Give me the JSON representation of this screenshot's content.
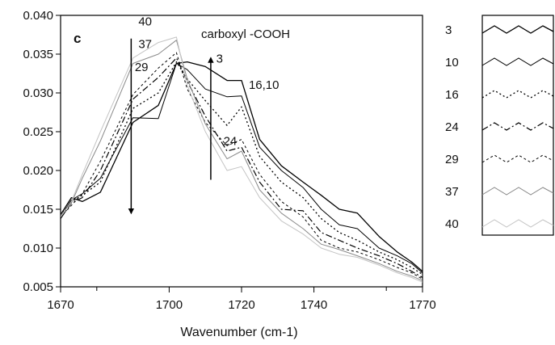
{
  "chart_data": {
    "type": "line",
    "panel_letter": "c",
    "title": "carboxyl -COOH",
    "xlabel": "Wavenumber (cm-1)",
    "ylabel": "",
    "xlim": [
      1670,
      1770
    ],
    "ylim": [
      0.005,
      0.04
    ],
    "xticks": [
      1670,
      1700,
      1720,
      1740,
      1770
    ],
    "xtick_labels": [
      "1670",
      "1700",
      "1720",
      "1740",
      "1770"
    ],
    "minor_xticks": [
      1680,
      1760
    ],
    "yticks": [
      0.005,
      0.01,
      0.015,
      0.02,
      0.025,
      0.03,
      0.035,
      0.04
    ],
    "ytick_labels": [
      "0.005",
      "0.010",
      "0.015",
      "0.020",
      "0.025",
      "0.030",
      "0.035",
      "0.040"
    ],
    "grid": false,
    "legend_position": "right",
    "x": [
      1670,
      1673,
      1676,
      1681,
      1690,
      1697,
      1702,
      1705,
      1710,
      1716,
      1720,
      1725,
      1731,
      1737,
      1742,
      1747,
      1752,
      1758,
      1763,
      1767,
      1770
    ],
    "series": [
      {
        "name": "3",
        "color": "#000000",
        "dash": "solid",
        "width": 1.3,
        "values": [
          0.0143,
          0.0165,
          0.016,
          0.0172,
          0.0262,
          0.0284,
          0.0338,
          0.034,
          0.0334,
          0.0316,
          0.0316,
          0.024,
          0.0206,
          0.0185,
          0.0168,
          0.015,
          0.0145,
          0.0115,
          0.0095,
          0.0082,
          0.007
        ]
      },
      {
        "name": "10",
        "color": "#000000",
        "dash": "solid",
        "width": 1.0,
        "values": [
          0.014,
          0.0162,
          0.017,
          0.019,
          0.0268,
          0.0267,
          0.0338,
          0.033,
          0.0305,
          0.0295,
          0.0296,
          0.023,
          0.02,
          0.0178,
          0.015,
          0.013,
          0.0125,
          0.01,
          0.009,
          0.008,
          0.0068
        ]
      },
      {
        "name": "16",
        "color": "#000000",
        "dash": "2 3",
        "width": 1.3,
        "values": [
          0.0142,
          0.016,
          0.0168,
          0.0185,
          0.028,
          0.03,
          0.034,
          0.0318,
          0.029,
          0.0258,
          0.0282,
          0.0218,
          0.0185,
          0.0165,
          0.0138,
          0.012,
          0.011,
          0.0095,
          0.0085,
          0.0075,
          0.0066
        ]
      },
      {
        "name": "24",
        "color": "#000000",
        "dash": "8 3 2 3",
        "width": 1.2,
        "values": [
          0.0138,
          0.0158,
          0.0165,
          0.02,
          0.0292,
          0.032,
          0.0345,
          0.0315,
          0.027,
          0.0225,
          0.023,
          0.0185,
          0.015,
          0.0148,
          0.012,
          0.011,
          0.01,
          0.009,
          0.008,
          0.007,
          0.0062
        ]
      },
      {
        "name": "29",
        "color": "#000000",
        "dash": "3 3",
        "width": 1.0,
        "values": [
          0.014,
          0.0155,
          0.017,
          0.0212,
          0.0298,
          0.0332,
          0.0352,
          0.0305,
          0.0262,
          0.0232,
          0.024,
          0.0195,
          0.016,
          0.014,
          0.011,
          0.01,
          0.0095,
          0.0085,
          0.0075,
          0.0068,
          0.006
        ]
      },
      {
        "name": "37",
        "color": "#8a8a8a",
        "dash": "solid",
        "width": 1.0,
        "values": [
          0.0142,
          0.0158,
          0.019,
          0.0238,
          0.0338,
          0.035,
          0.0368,
          0.0318,
          0.026,
          0.0215,
          0.0225,
          0.0175,
          0.0145,
          0.0125,
          0.0105,
          0.0098,
          0.009,
          0.008,
          0.007,
          0.0064,
          0.0058
        ]
      },
      {
        "name": "40",
        "color": "#c4c4c4",
        "dash": "solid",
        "width": 1.0,
        "values": [
          0.014,
          0.016,
          0.0195,
          0.025,
          0.0345,
          0.0365,
          0.0372,
          0.031,
          0.025,
          0.02,
          0.0205,
          0.0165,
          0.0135,
          0.0118,
          0.01,
          0.0092,
          0.0088,
          0.0078,
          0.0068,
          0.0062,
          0.0056
        ]
      }
    ],
    "annotations": [
      {
        "text": "40",
        "x": 1691.5,
        "y": 0.0387
      },
      {
        "text": "37",
        "x": 1691.5,
        "y": 0.0358
      },
      {
        "text": "29",
        "x": 1690.5,
        "y": 0.0328
      },
      {
        "text": "3",
        "x": 1713,
        "y": 0.0339
      },
      {
        "text": "16,10",
        "x": 1722,
        "y": 0.0305
      },
      {
        "text": "24",
        "x": 1715,
        "y": 0.0233
      }
    ],
    "arrows": [
      {
        "direction": "down",
        "x": 1689.5,
        "y_from": 0.037,
        "y_to": 0.0145
      },
      {
        "direction": "up",
        "x": 1711.5,
        "y_from": 0.0188,
        "y_to": 0.0345
      }
    ]
  }
}
